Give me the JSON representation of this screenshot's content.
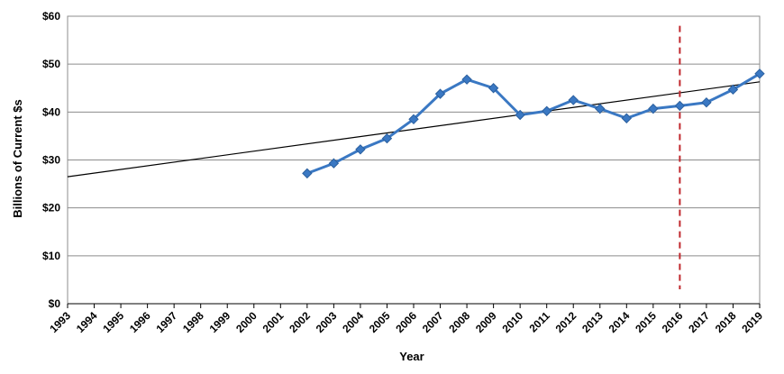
{
  "chart_data": {
    "type": "line",
    "xlabel": "Year",
    "ylabel": "Billions of Current $s",
    "ylim": [
      0,
      60
    ],
    "xlim": [
      1993,
      2019
    ],
    "grid": true,
    "y_ticks": [
      "$0",
      "$10",
      "$20",
      "$30",
      "$40",
      "$50",
      "$60"
    ],
    "y_tick_values": [
      0,
      10,
      20,
      30,
      40,
      50,
      60
    ],
    "x_ticks": [
      "1993",
      "1994",
      "1995",
      "1996",
      "1997",
      "1998",
      "1999",
      "2000",
      "2001",
      "2002",
      "2003",
      "2004",
      "2005",
      "2006",
      "2007",
      "2008",
      "2009",
      "2010",
      "2011",
      "2012",
      "2013",
      "2014",
      "2015",
      "2016",
      "2017",
      "2018",
      "2019"
    ],
    "series": [
      {
        "x": [
          2002,
          2003,
          2004,
          2005,
          2006,
          2007,
          2008,
          2009,
          2010,
          2011,
          2012,
          2013,
          2014,
          2015,
          2016,
          2017,
          2018,
          2019
        ],
        "values": [
          27.2,
          29.3,
          32.2,
          34.5,
          38.5,
          43.8,
          46.8,
          45.0,
          39.4,
          40.2,
          42.5,
          40.7,
          38.7,
          40.7,
          41.3,
          42.0,
          44.7,
          48.0
        ],
        "color": "#3a78c3",
        "marker": "diamond"
      }
    ],
    "trendline": {
      "x": [
        1993,
        2019
      ],
      "values": [
        26.5,
        46.3
      ],
      "color": "#000000"
    },
    "reference_line": {
      "x": 2016,
      "y_range": [
        3,
        58
      ],
      "color": "#c0282d",
      "style": "dashed"
    }
  }
}
